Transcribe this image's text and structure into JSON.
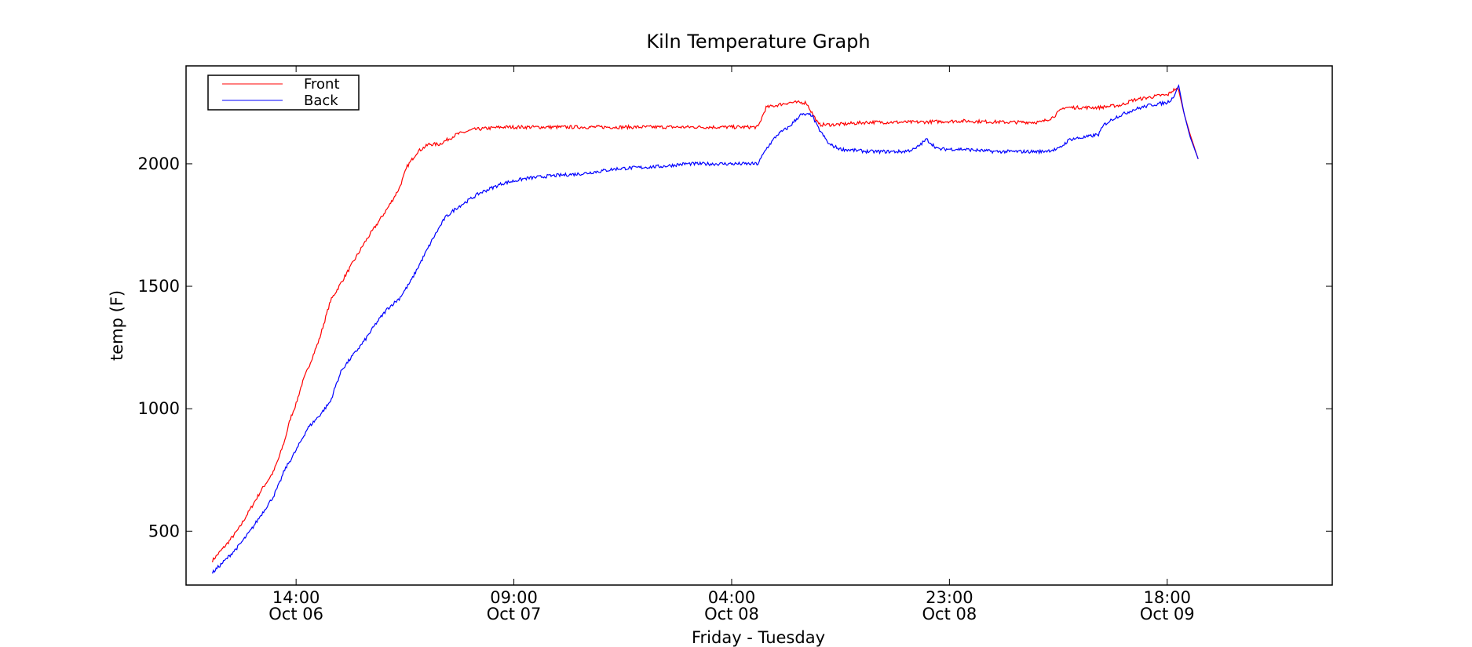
{
  "chart_data": {
    "type": "line",
    "title": "Kiln Temperature Graph",
    "xlabel": "Friday - Tuesday",
    "ylabel": "temp (F)",
    "x_unit": "hours",
    "x_range": [
      -9.6,
      90.4
    ],
    "ylim": [
      280,
      2400
    ],
    "yticks": [
      500,
      1000,
      1500,
      2000
    ],
    "xticks": [
      {
        "x": 0,
        "time": "14:00",
        "date": "Oct 06"
      },
      {
        "x": 19,
        "time": "09:00",
        "date": "Oct 07"
      },
      {
        "x": 38,
        "time": "04:00",
        "date": "Oct 08"
      },
      {
        "x": 57,
        "time": "23:00",
        "date": "Oct 08"
      },
      {
        "x": 76,
        "time": "18:00",
        "date": "Oct 09"
      }
    ],
    "legend_position": "top-left",
    "grid": false,
    "series": [
      {
        "name": "Front",
        "color": "#ff0000",
        "points": [
          [
            -7.3,
            380
          ],
          [
            -6.0,
            450
          ],
          [
            -5.0,
            510
          ],
          [
            -4.0,
            590
          ],
          [
            -3.0,
            670
          ],
          [
            -2.0,
            740
          ],
          [
            -1.5,
            800
          ],
          [
            -1.0,
            870
          ],
          [
            -0.5,
            960
          ],
          [
            0,
            1020
          ],
          [
            0.5,
            1100
          ],
          [
            1.0,
            1160
          ],
          [
            1.5,
            1220
          ],
          [
            2.0,
            1280
          ],
          [
            2.5,
            1360
          ],
          [
            3.0,
            1440
          ],
          [
            4.0,
            1520
          ],
          [
            5.0,
            1600
          ],
          [
            6.0,
            1680
          ],
          [
            7.0,
            1750
          ],
          [
            8.0,
            1820
          ],
          [
            9.0,
            1900
          ],
          [
            9.7,
            1990
          ],
          [
            10.6,
            2050
          ],
          [
            11.6,
            2080
          ],
          [
            12.5,
            2080
          ],
          [
            14.0,
            2120
          ],
          [
            15.5,
            2140
          ],
          [
            18.0,
            2150
          ],
          [
            22.0,
            2150
          ],
          [
            26.0,
            2150
          ],
          [
            30.0,
            2150
          ],
          [
            34.0,
            2150
          ],
          [
            38.0,
            2150
          ],
          [
            40.3,
            2150
          ],
          [
            41.0,
            2230
          ],
          [
            43.0,
            2250
          ],
          [
            44.5,
            2250
          ],
          [
            45.6,
            2160
          ],
          [
            47.0,
            2160
          ],
          [
            50.0,
            2170
          ],
          [
            54.0,
            2170
          ],
          [
            58.0,
            2175
          ],
          [
            62.0,
            2170
          ],
          [
            65.0,
            2170
          ],
          [
            66.0,
            2190
          ],
          [
            67.0,
            2230
          ],
          [
            70.0,
            2230
          ],
          [
            72.0,
            2240
          ],
          [
            73.0,
            2260
          ],
          [
            75.5,
            2280
          ],
          [
            76.0,
            2280
          ],
          [
            76.5,
            2300
          ],
          [
            76.9,
            2310
          ],
          [
            77.0,
            2300
          ],
          [
            77.5,
            2200
          ],
          [
            78.0,
            2120
          ],
          [
            78.7,
            2020
          ]
        ]
      },
      {
        "name": "Back",
        "color": "#0000ff",
        "points": [
          [
            -7.3,
            330
          ],
          [
            -6.0,
            390
          ],
          [
            -5.0,
            440
          ],
          [
            -4.0,
            500
          ],
          [
            -3.0,
            570
          ],
          [
            -2.0,
            640
          ],
          [
            -1.5,
            690
          ],
          [
            -1.0,
            750
          ],
          [
            0,
            830
          ],
          [
            1.0,
            920
          ],
          [
            2.0,
            970
          ],
          [
            3.0,
            1030
          ],
          [
            3.5,
            1100
          ],
          [
            4.0,
            1160
          ],
          [
            5.0,
            1220
          ],
          [
            6.0,
            1280
          ],
          [
            7.0,
            1350
          ],
          [
            8.0,
            1410
          ],
          [
            9.0,
            1450
          ],
          [
            10.0,
            1520
          ],
          [
            11.0,
            1610
          ],
          [
            12.0,
            1700
          ],
          [
            13.0,
            1780
          ],
          [
            14.0,
            1820
          ],
          [
            15.0,
            1850
          ],
          [
            16.0,
            1880
          ],
          [
            17.0,
            1900
          ],
          [
            18.0,
            1920
          ],
          [
            19.0,
            1930
          ],
          [
            20.0,
            1940
          ],
          [
            22.0,
            1950
          ],
          [
            25.0,
            1960
          ],
          [
            28.0,
            1980
          ],
          [
            30.0,
            1985
          ],
          [
            32.0,
            1990
          ],
          [
            34.0,
            2000
          ],
          [
            37.0,
            2000
          ],
          [
            40.3,
            2000
          ],
          [
            41.0,
            2060
          ],
          [
            42.0,
            2120
          ],
          [
            43.0,
            2150
          ],
          [
            44.0,
            2200
          ],
          [
            45.0,
            2200
          ],
          [
            45.5,
            2150
          ],
          [
            46.5,
            2080
          ],
          [
            47.5,
            2060
          ],
          [
            50.0,
            2050
          ],
          [
            53.0,
            2050
          ],
          [
            54.0,
            2060
          ],
          [
            55.0,
            2100
          ],
          [
            56.0,
            2060
          ],
          [
            58.0,
            2060
          ],
          [
            61.0,
            2050
          ],
          [
            65.0,
            2050
          ],
          [
            66.5,
            2060
          ],
          [
            67.5,
            2100
          ],
          [
            69.0,
            2110
          ],
          [
            70.0,
            2120
          ],
          [
            70.5,
            2160
          ],
          [
            71.5,
            2190
          ],
          [
            73.0,
            2220
          ],
          [
            74.5,
            2240
          ],
          [
            76.0,
            2250
          ],
          [
            76.5,
            2270
          ],
          [
            77.0,
            2320
          ],
          [
            77.5,
            2200
          ],
          [
            78.0,
            2110
          ],
          [
            78.7,
            2020
          ]
        ]
      }
    ]
  }
}
